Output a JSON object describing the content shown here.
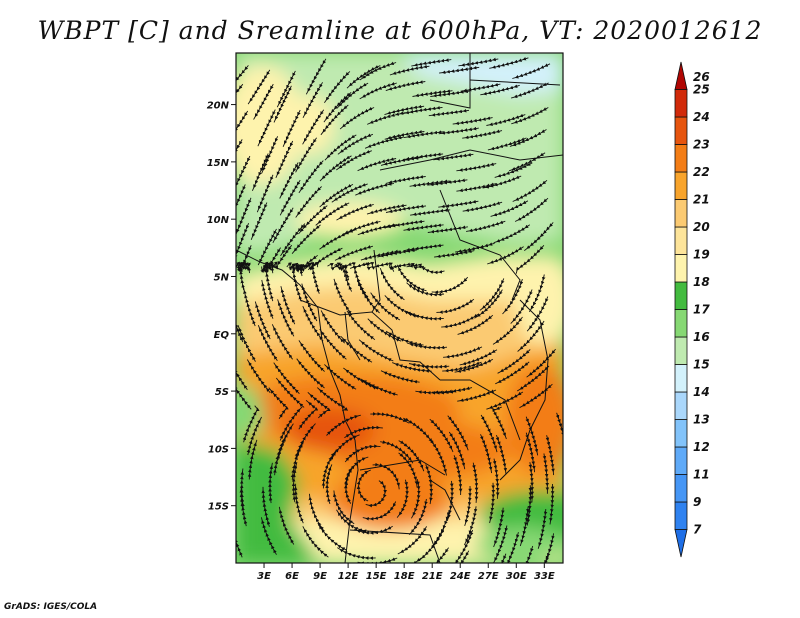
{
  "title": "WBPT [C] and Sreamline at 600hPa, VT: 2020012612",
  "credit": "GrADS: IGES/COLA",
  "map": {
    "lat_labels": [
      "20N",
      "15N",
      "10N",
      "5N",
      "EQ",
      "5S",
      "10S",
      "15S"
    ],
    "lat_values": [
      20,
      15,
      10,
      5,
      0,
      -5,
      -10,
      -15
    ],
    "lon_labels": [
      "3E",
      "6E",
      "9E",
      "12E",
      "15E",
      "18E",
      "21E",
      "24E",
      "27E",
      "30E",
      "33E"
    ],
    "lon_values": [
      3,
      6,
      9,
      12,
      15,
      18,
      21,
      24,
      27,
      30,
      33
    ],
    "lon_range": [
      0,
      35
    ],
    "lat_range": [
      -20,
      24.5
    ]
  },
  "colorbar": {
    "labels": [
      "7",
      "9",
      "11",
      "12",
      "13",
      "14",
      "15",
      "16",
      "17",
      "18",
      "19",
      "20",
      "21",
      "22",
      "23",
      "24",
      "25",
      "26"
    ],
    "colors": [
      "#1e6ee6",
      "#2f82f0",
      "#4696f5",
      "#5faaf8",
      "#82c3fa",
      "#aad7fb",
      "#d3f1fb",
      "#bfeab0",
      "#86d873",
      "#43bb3f",
      "#fef3ad",
      "#fde49a",
      "#fbca72",
      "#f8a42c",
      "#f37d16",
      "#e6550f",
      "#d12a0a",
      "#b00603"
    ]
  }
}
